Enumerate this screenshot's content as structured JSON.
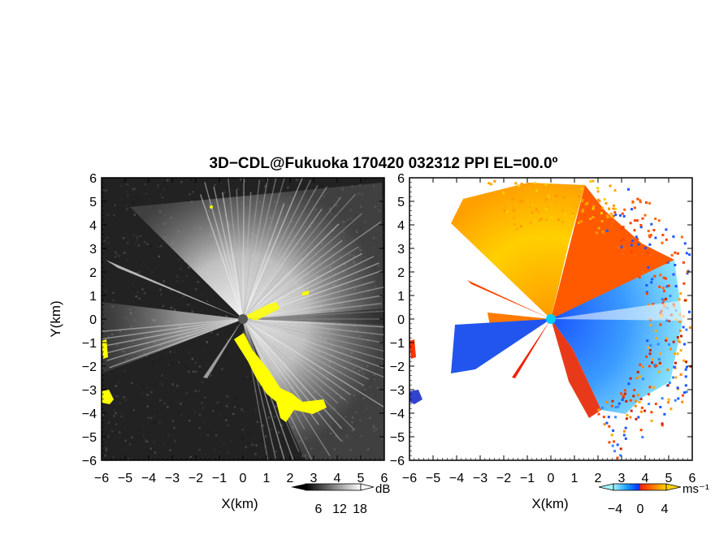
{
  "title": "3D−CDL@Fukuoka 170420 032312 PPI EL=00.0º",
  "chart_data": [
    {
      "type": "heatmap",
      "panel": "reflectivity",
      "xlabel": "X(km)",
      "ylabel": "Y(km)",
      "xlim": [
        -6,
        6
      ],
      "ylim": [
        -6,
        6
      ],
      "xticks": [
        "−6",
        "−5",
        "−4",
        "−3",
        "−2",
        "−1",
        "0",
        "1",
        "2",
        "3",
        "4",
        "5",
        "6"
      ],
      "yticks": [
        "6",
        "5",
        "4",
        "3",
        "2",
        "1",
        "0",
        "−1",
        "−2",
        "−3",
        "−4",
        "−5",
        "−6"
      ],
      "colorbar": {
        "unit": "dB",
        "ticks": [
          "6",
          "12",
          "18"
        ],
        "colors": [
          "#000000",
          "#ffffff"
        ]
      },
      "background_color": "#222222",
      "clutter_color": "#ffff00",
      "clutter_regions": [
        {
          "x": [
            -5.9,
            -5.8
          ],
          "y": [
            -1.4,
            -1.8
          ]
        },
        {
          "x": [
            -5.8,
            -5.2
          ],
          "y": [
            -3.1,
            -3.6
          ]
        },
        {
          "x": [
            0,
            3.5
          ],
          "y": [
            -0.8,
            -4.2
          ]
        },
        {
          "x": [
            0.3,
            2.8
          ],
          "y": [
            0.9,
            0.2
          ]
        }
      ]
    },
    {
      "type": "heatmap",
      "panel": "doppler_velocity",
      "xlabel": "X(km)",
      "xlim": [
        -6,
        6
      ],
      "ylim": [
        -6,
        6
      ],
      "xticks": [
        "−6",
        "−5",
        "−4",
        "−3",
        "−2",
        "−1",
        "0",
        "1",
        "2",
        "3",
        "4",
        "5",
        "6"
      ],
      "yticks": [
        "6",
        "5",
        "4",
        "3",
        "2",
        "1",
        "0",
        "−1",
        "−2",
        "−3",
        "−4",
        "−5",
        "−6"
      ],
      "colorbar": {
        "unit": "ms⁻¹",
        "ticks": [
          "−4",
          "0",
          "4"
        ],
        "colors": [
          "#00ffff",
          "#0044ff",
          "#ff3300",
          "#ffcc00"
        ]
      },
      "background_color": "#ffffff",
      "radar_center": [
        0,
        0
      ],
      "center_marker_color": "#00ccff",
      "receding_color": "#ff7700",
      "approaching_color": "#1a55ff"
    }
  ]
}
